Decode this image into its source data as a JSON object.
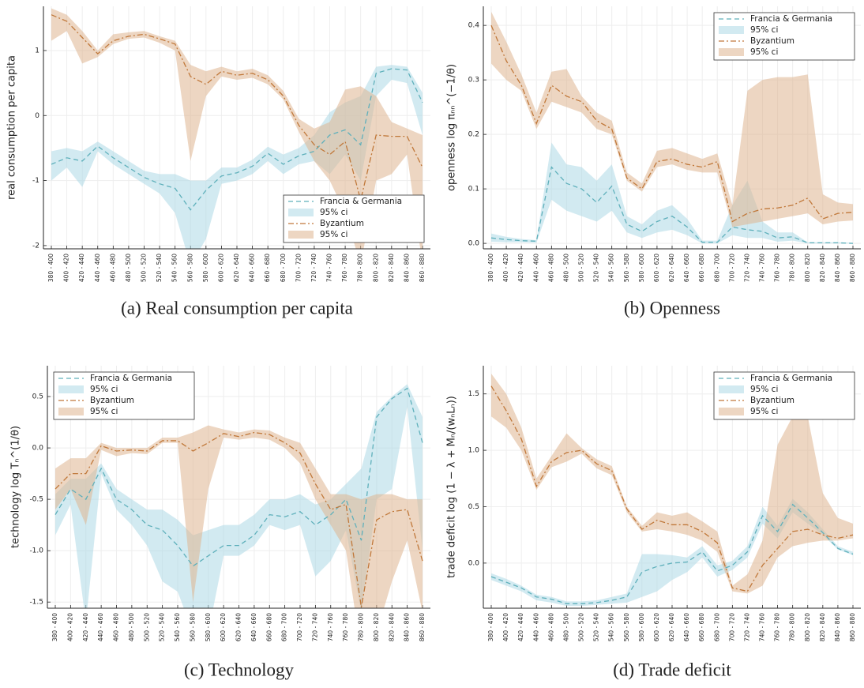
{
  "chart_data": [
    {
      "type": "line",
      "caption": "(a) Real consumption per capita",
      "y_label": "real consumption per capita",
      "categories": [
        "380 - 400",
        "400 - 420",
        "420 - 440",
        "440 - 460",
        "460 - 480",
        "480 - 500",
        "500 - 520",
        "520 - 540",
        "540 - 560",
        "560 - 580",
        "580 - 600",
        "600 - 620",
        "620 - 640",
        "640 - 660",
        "660 - 680",
        "680 - 700",
        "700 - 720",
        "720 - 740",
        "740 - 760",
        "760 - 780",
        "780 - 800",
        "800 - 820",
        "820 - 840",
        "840 - 860",
        "860 - 880"
      ],
      "series": [
        {
          "name": "Francia & Germania",
          "color": "#5fb0bb",
          "dash": "dashed",
          "values": [
            -0.75,
            -0.65,
            -0.7,
            -0.47,
            -0.65,
            -0.8,
            -0.95,
            -1.05,
            -1.12,
            -1.45,
            -1.15,
            -0.93,
            -0.88,
            -0.78,
            -0.58,
            -0.75,
            -0.62,
            -0.55,
            -0.3,
            -0.22,
            -0.45,
            0.65,
            0.72,
            0.7,
            0.2
          ]
        },
        {
          "name": "95% ci",
          "color": "#add8e6",
          "lower": [
            -1.0,
            -0.8,
            -1.1,
            -0.55,
            -0.75,
            -0.9,
            -1.05,
            -1.2,
            -1.5,
            -2.3,
            -1.9,
            -1.05,
            -1.0,
            -0.9,
            -0.7,
            -0.9,
            -0.75,
            -0.7,
            -0.9,
            -0.6,
            -1.0,
            0.3,
            0.55,
            0.5,
            -0.3
          ],
          "upper": [
            -0.55,
            -0.5,
            -0.55,
            -0.4,
            -0.55,
            -0.7,
            -0.85,
            -0.9,
            -0.9,
            -1.0,
            -1.0,
            -0.8,
            -0.8,
            -0.68,
            -0.48,
            -0.6,
            -0.5,
            -0.3,
            0.05,
            0.2,
            0.3,
            0.75,
            0.78,
            0.75,
            0.35
          ]
        },
        {
          "name": "Byzantium",
          "color": "#c0783a",
          "dash": "dashdot",
          "values": [
            1.55,
            1.45,
            1.2,
            0.95,
            1.15,
            1.22,
            1.25,
            1.18,
            1.1,
            0.6,
            0.48,
            0.68,
            0.62,
            0.65,
            0.55,
            0.3,
            -0.15,
            -0.45,
            -0.6,
            -0.4,
            -1.3,
            -0.3,
            -0.32,
            -0.32,
            -0.8
          ]
        },
        {
          "name": "95% ci",
          "color": "#deb48f",
          "lower": [
            1.15,
            1.3,
            0.8,
            0.9,
            1.1,
            1.18,
            1.2,
            1.12,
            1.0,
            -0.7,
            0.3,
            0.6,
            0.55,
            0.58,
            0.48,
            0.25,
            -0.25,
            -0.7,
            -1.0,
            -1.5,
            -2.3,
            -1.0,
            -0.9,
            -0.6,
            -2.3
          ],
          "upper": [
            1.65,
            1.55,
            1.3,
            1.0,
            1.25,
            1.28,
            1.3,
            1.22,
            1.15,
            0.78,
            0.68,
            0.75,
            0.68,
            0.72,
            0.62,
            0.38,
            -0.05,
            -0.2,
            -0.1,
            0.4,
            0.45,
            0.3,
            -0.1,
            -0.2,
            -0.3
          ]
        }
      ],
      "ylim": [
        -2.05,
        1.68
      ],
      "yticks": [
        -2,
        -1,
        0,
        1
      ],
      "grid": true,
      "legend": "bottom-right"
    },
    {
      "type": "line",
      "caption": "(b) Openness",
      "y_label": "openness log πₙₙ^(−1/θ)",
      "categories": [
        "380 - 400",
        "400 - 420",
        "420 - 440",
        "440 - 460",
        "460 - 480",
        "480 - 500",
        "500 - 520",
        "520 - 540",
        "540 - 560",
        "560 - 580",
        "580 - 600",
        "600 - 620",
        "620 - 640",
        "640 - 660",
        "660 - 680",
        "680 - 700",
        "700 - 720",
        "720 - 740",
        "740 - 760",
        "760 - 780",
        "780 - 800",
        "800 - 820",
        "820 - 840",
        "840 - 860",
        "860 - 880"
      ],
      "series": [
        {
          "name": "Francia & Germania",
          "color": "#5fb0bb",
          "dash": "dashed",
          "values": [
            0.01,
            0.007,
            0.005,
            0.004,
            0.14,
            0.11,
            0.1,
            0.075,
            0.105,
            0.035,
            0.022,
            0.04,
            0.05,
            0.03,
            0.002,
            0.002,
            0.03,
            0.025,
            0.022,
            0.01,
            0.012,
            0.001,
            0.001,
            0.001,
            0.0
          ]
        },
        {
          "name": "95% ci",
          "color": "#add8e6",
          "lower": [
            0.003,
            0.002,
            0.002,
            0.001,
            0.08,
            0.06,
            0.05,
            0.04,
            0.06,
            0.02,
            0.01,
            0.02,
            0.025,
            0.015,
            0.0,
            0.0,
            0.015,
            0.01,
            0.01,
            0.003,
            0.005,
            0.0,
            0.0,
            0.0,
            0.0
          ],
          "upper": [
            0.018,
            0.012,
            0.008,
            0.006,
            0.185,
            0.145,
            0.14,
            0.115,
            0.145,
            0.05,
            0.035,
            0.06,
            0.07,
            0.045,
            0.005,
            0.005,
            0.07,
            0.115,
            0.04,
            0.02,
            0.02,
            0.002,
            0.002,
            0.002,
            0.001
          ]
        },
        {
          "name": "Byzantium",
          "color": "#c0783a",
          "dash": "dashdot",
          "values": [
            0.4,
            0.335,
            0.29,
            0.22,
            0.29,
            0.27,
            0.26,
            0.225,
            0.21,
            0.12,
            0.1,
            0.15,
            0.155,
            0.145,
            0.14,
            0.15,
            0.04,
            0.055,
            0.063,
            0.065,
            0.07,
            0.083,
            0.045,
            0.055,
            0.057
          ]
        },
        {
          "name": "95% ci",
          "color": "#deb48f",
          "lower": [
            0.33,
            0.3,
            0.28,
            0.21,
            0.26,
            0.25,
            0.24,
            0.21,
            0.2,
            0.115,
            0.095,
            0.14,
            0.145,
            0.135,
            0.13,
            0.13,
            0.03,
            0.035,
            0.04,
            0.045,
            0.05,
            0.055,
            0.035,
            0.04,
            0.042
          ],
          "upper": [
            0.425,
            0.37,
            0.31,
            0.24,
            0.315,
            0.32,
            0.27,
            0.24,
            0.225,
            0.13,
            0.11,
            0.17,
            0.175,
            0.165,
            0.155,
            0.165,
            0.07,
            0.28,
            0.3,
            0.305,
            0.305,
            0.31,
            0.09,
            0.075,
            0.072
          ]
        }
      ],
      "ylim": [
        -0.01,
        0.435
      ],
      "yticks": [
        {
          "value": 0,
          "label": "0.0"
        },
        0.1,
        0.2,
        0.3,
        0.4
      ],
      "grid": true,
      "legend": "top-right"
    },
    {
      "type": "line",
      "caption": "(c) Technology",
      "y_label": "technology log Tₙ^(1/θ)",
      "categories": [
        "380 - 400",
        "400 - 420",
        "420 - 440",
        "440 - 460",
        "460 - 480",
        "480 - 500",
        "500 - 520",
        "520 - 540",
        "540 - 560",
        "560 - 580",
        "580 - 600",
        "600 - 620",
        "620 - 640",
        "640 - 660",
        "660 - 680",
        "680 - 700",
        "700 - 720",
        "720 - 740",
        "740 - 760",
        "760 - 780",
        "780 - 800",
        "800 - 820",
        "820 - 840",
        "840 - 860",
        "860 - 880"
      ],
      "series": [
        {
          "name": "Francia & Germania",
          "color": "#5fb0bb",
          "dash": "dashed",
          "values": [
            -0.65,
            -0.4,
            -0.5,
            -0.2,
            -0.5,
            -0.6,
            -0.75,
            -0.8,
            -0.95,
            -1.15,
            -1.05,
            -0.95,
            -0.95,
            -0.85,
            -0.65,
            -0.67,
            -0.62,
            -0.75,
            -0.65,
            -0.5,
            -0.9,
            0.3,
            0.48,
            0.58,
            0.05
          ]
        },
        {
          "name": "95% ci",
          "color": "#add8e6",
          "lower": [
            -0.85,
            -0.55,
            -1.7,
            -0.25,
            -0.6,
            -0.75,
            -0.95,
            -1.3,
            -1.4,
            -1.8,
            -1.8,
            -1.05,
            -1.05,
            -0.95,
            -0.75,
            -0.8,
            -0.75,
            -1.25,
            -1.1,
            -0.8,
            -1.6,
            -0.5,
            -0.4,
            0.4,
            -1.0
          ],
          "upper": [
            -0.45,
            -0.3,
            -0.3,
            -0.15,
            -0.4,
            -0.5,
            -0.6,
            -0.6,
            -0.7,
            -0.85,
            -0.8,
            -0.75,
            -0.75,
            -0.65,
            -0.5,
            -0.5,
            -0.45,
            -0.55,
            -0.5,
            -0.35,
            -0.2,
            0.35,
            0.5,
            0.62,
            0.3
          ]
        },
        {
          "name": "Byzantium",
          "color": "#c0783a",
          "dash": "dashdot",
          "values": [
            -0.4,
            -0.25,
            -0.25,
            0.02,
            -0.03,
            -0.02,
            -0.03,
            0.07,
            0.07,
            -0.03,
            0.05,
            0.14,
            0.11,
            0.15,
            0.13,
            0.05,
            -0.05,
            -0.35,
            -0.6,
            -0.55,
            -1.55,
            -0.7,
            -0.62,
            -0.6,
            -1.1
          ]
        },
        {
          "name": "95% ci",
          "color": "#deb48f",
          "lower": [
            -0.6,
            -0.4,
            -0.75,
            -0.02,
            -0.08,
            -0.05,
            -0.06,
            0.05,
            0.05,
            -1.5,
            -0.4,
            0.1,
            0.08,
            0.1,
            0.08,
            0.0,
            -0.15,
            -0.5,
            -0.75,
            -1.0,
            -2.0,
            -1.8,
            -1.3,
            -0.9,
            -1.6
          ],
          "upper": [
            -0.2,
            -0.1,
            -0.1,
            0.05,
            0.0,
            0.0,
            0.0,
            0.1,
            0.1,
            0.15,
            0.22,
            0.18,
            0.15,
            0.18,
            0.17,
            0.1,
            0.05,
            -0.2,
            -0.45,
            -0.45,
            -0.5,
            -0.45,
            -0.45,
            -0.5,
            -0.5
          ]
        }
      ],
      "ylim": [
        -1.56,
        0.8
      ],
      "yticks": [
        -1.5,
        {
          "value": -1,
          "label": "-1.0"
        },
        -0.5,
        {
          "value": 0,
          "label": "0.0"
        },
        0.5
      ],
      "grid": true,
      "legend": "top-left"
    },
    {
      "type": "line",
      "caption": "(d) Trade deficit",
      "y_label": "trade deficit log (1 − λ + Mₙ/(wₙLₙ))",
      "categories": [
        "380 - 400",
        "400 - 420",
        "420 - 440",
        "440 - 460",
        "460 - 480",
        "480 - 500",
        "500 - 520",
        "520 - 540",
        "540 - 560",
        "560 - 580",
        "580 - 600",
        "600 - 620",
        "620 - 640",
        "640 - 660",
        "660 - 680",
        "680 - 700",
        "700 - 720",
        "720 - 740",
        "740 - 760",
        "760 - 780",
        "780 - 800",
        "800 - 820",
        "820 - 840",
        "840 - 860",
        "860 - 880"
      ],
      "series": [
        {
          "name": "Francia & Germania",
          "color": "#5fb0bb",
          "dash": "dashed",
          "values": [
            -0.12,
            -0.17,
            -0.22,
            -0.3,
            -0.32,
            -0.36,
            -0.36,
            -0.35,
            -0.33,
            -0.3,
            -0.08,
            -0.03,
            0.0,
            0.01,
            0.1,
            -0.07,
            -0.02,
            0.1,
            0.42,
            0.28,
            0.52,
            0.4,
            0.27,
            0.13,
            0.08
          ]
        },
        {
          "name": "95% ci",
          "color": "#add8e6",
          "lower": [
            -0.15,
            -0.2,
            -0.25,
            -0.33,
            -0.35,
            -0.38,
            -0.38,
            -0.37,
            -0.36,
            -0.35,
            -0.3,
            -0.25,
            -0.15,
            -0.08,
            0.05,
            -0.12,
            -0.06,
            0.05,
            0.35,
            0.22,
            0.45,
            0.35,
            0.25,
            0.12,
            0.07
          ],
          "upper": [
            -0.09,
            -0.14,
            -0.2,
            -0.28,
            -0.3,
            -0.34,
            -0.34,
            -0.33,
            -0.3,
            -0.27,
            0.08,
            0.08,
            0.07,
            0.05,
            0.15,
            -0.02,
            0.02,
            0.15,
            0.5,
            0.33,
            0.57,
            0.45,
            0.3,
            0.15,
            0.1
          ]
        },
        {
          "name": "Byzantium",
          "color": "#c0783a",
          "dash": "dashdot",
          "values": [
            1.57,
            1.35,
            1.1,
            0.68,
            0.9,
            0.98,
            1.0,
            0.88,
            0.82,
            0.48,
            0.3,
            0.38,
            0.34,
            0.34,
            0.28,
            0.18,
            -0.22,
            -0.25,
            -0.02,
            0.13,
            0.28,
            0.3,
            0.25,
            0.22,
            0.25
          ]
        },
        {
          "name": "95% ci",
          "color": "#deb48f",
          "lower": [
            1.3,
            1.2,
            1.0,
            0.65,
            0.85,
            0.9,
            0.97,
            0.84,
            0.78,
            0.45,
            0.28,
            0.3,
            0.28,
            0.25,
            0.2,
            0.1,
            -0.25,
            -0.27,
            -0.2,
            0.05,
            0.15,
            0.18,
            0.2,
            0.2,
            0.22
          ],
          "upper": [
            1.68,
            1.5,
            1.2,
            0.75,
            0.95,
            1.15,
            1.02,
            0.92,
            0.86,
            0.5,
            0.33,
            0.45,
            0.42,
            0.45,
            0.37,
            0.28,
            -0.2,
            -0.1,
            0.2,
            1.05,
            1.3,
            1.3,
            0.62,
            0.4,
            0.35
          ]
        }
      ],
      "ylim": [
        -0.4,
        1.75
      ],
      "yticks": [
        {
          "value": 0,
          "label": "0.0"
        },
        0.5,
        {
          "value": 1,
          "label": "1.0"
        },
        1.5
      ],
      "grid": true,
      "legend": "top-right"
    }
  ]
}
